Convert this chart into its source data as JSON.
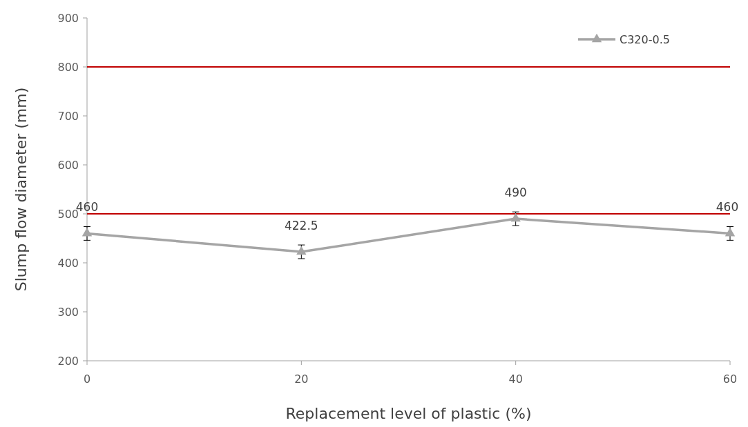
{
  "chart_data": {
    "type": "line",
    "xlabel": "Replacement level of plastic (%)",
    "ylabel": "Slump flow diameter (mm)",
    "x": [
      0,
      20,
      40,
      60
    ],
    "series": [
      {
        "name": "C320-0.5",
        "color": "#a5a5a5",
        "values": [
          460,
          422.5,
          490,
          460
        ],
        "errors": [
          14,
          14,
          14,
          14
        ]
      }
    ],
    "xlim": [
      0,
      60
    ],
    "xticks": [
      0,
      20,
      40,
      60
    ],
    "ylim": [
      200,
      900
    ],
    "yticks": [
      200,
      300,
      400,
      500,
      600,
      700,
      800,
      900
    ],
    "ref_lines": [
      {
        "axis": "y",
        "value": 800,
        "color": "#c00000"
      },
      {
        "axis": "y",
        "value": 500,
        "color": "#c00000"
      }
    ],
    "data_labels": true,
    "legend": "top right",
    "marker": "triangle",
    "grid": false
  }
}
